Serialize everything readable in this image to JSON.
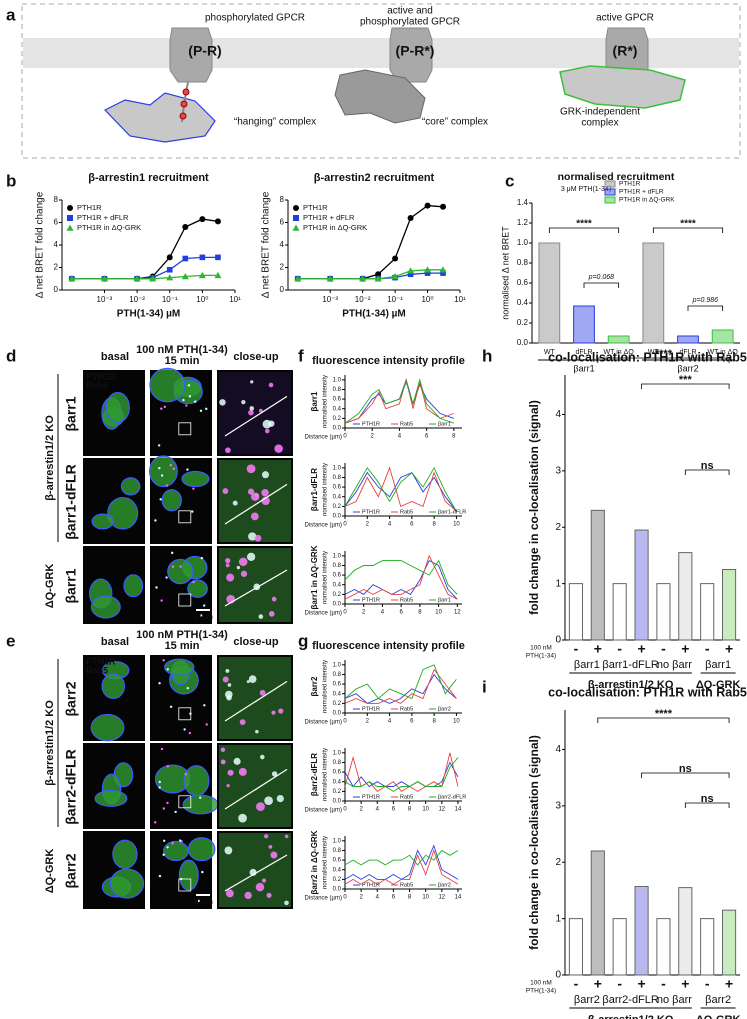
{
  "panel_labels": [
    "a",
    "b",
    "c",
    "d",
    "e",
    "f",
    "g",
    "h",
    "i"
  ],
  "panel_a": {
    "states": [
      {
        "label": [
          "phosphorylated GPCR"
        ],
        "code": "(P-R)",
        "complex": [
          "“hanging” complex"
        ]
      },
      {
        "label": [
          "active and",
          "phosphorylated GPCR"
        ],
        "code": "(P-R*)",
        "complex": [
          "“core” complex"
        ]
      },
      {
        "label": [
          "active GPCR"
        ],
        "code": "(R*)",
        "complex": [
          "GRK-independent",
          "complex"
        ]
      }
    ]
  },
  "micrographs": [
    {
      "columns": [
        [
          "basal"
        ],
        [
          "100 nM PTH(1-34)",
          "15 min"
        ],
        [
          "close-up"
        ]
      ],
      "channels": [
        "PTH1R",
        "Rab5"
      ],
      "rows": [
        "βarr1",
        "βarr1-dFLR",
        "βarr1"
      ],
      "groups": [
        "β-arrestin1/2 KO",
        "ΔQ-GRK"
      ],
      "scale_bar": "10 µm"
    },
    {
      "columns": [
        [
          "basal"
        ],
        [
          "100 nM PTH(1-34)",
          "15 min"
        ],
        [
          "close-up"
        ]
      ],
      "channels": [
        "PTH1R",
        "Rab5"
      ],
      "rows": [
        "βarr2",
        "βarr2-dFLR",
        "βarr2"
      ],
      "groups": [
        "β-arrestin1/2 KO",
        "ΔQ-GRK"
      ],
      "scale_bar": "10 µm"
    }
  ],
  "chart_data": [
    {
      "type": "line",
      "title": "β-arrestin1 recruitment",
      "x_label": "PTH(1-34) µM",
      "y_label": "Δ net BRET fold change",
      "log_x": true,
      "legend": "upper left",
      "x": [
        0.0001,
        0.001,
        0.01,
        0.03,
        0.1,
        0.3,
        1,
        3
      ],
      "xlim": [
        5e-05,
        10
      ],
      "xticks": [
        {
          "value": 0.001,
          "label": "10⁻³"
        },
        {
          "value": 0.01,
          "label": "10⁻²"
        },
        {
          "value": 0.1,
          "label": "10⁻¹"
        },
        {
          "value": 1,
          "label": "10⁰"
        },
        {
          "value": 10,
          "label": "10¹"
        }
      ],
      "ylim": [
        0,
        8
      ],
      "yticks": [
        0,
        2,
        4,
        6,
        8
      ],
      "series": [
        {
          "name": "PTH1R",
          "color": "#000000",
          "marker": "circle",
          "values": [
            1,
            1,
            1,
            1.2,
            2.9,
            5.6,
            6.3,
            6.1
          ]
        },
        {
          "name": "PTH1R + dFLR",
          "color": "#1f3fe0",
          "marker": "square",
          "values": [
            1,
            1,
            1,
            1.1,
            1.8,
            2.8,
            2.9,
            2.9
          ]
        },
        {
          "name": "PTH1R in ΔQ-GRK",
          "color": "#2db82d",
          "marker": "triangle",
          "values": [
            1,
            1,
            1,
            1,
            1.1,
            1.2,
            1.3,
            1.3
          ]
        }
      ]
    },
    {
      "type": "line",
      "title": "β-arrestin2 recruitment",
      "x_label": "PTH(1-34) µM",
      "y_label": "Δ net BRET fold change",
      "log_x": true,
      "legend": "upper left",
      "x": [
        0.0001,
        0.001,
        0.01,
        0.03,
        0.1,
        0.3,
        1,
        3
      ],
      "xlim": [
        5e-05,
        10
      ],
      "xticks": [
        {
          "value": 0.001,
          "label": "10⁻³"
        },
        {
          "value": 0.01,
          "label": "10⁻²"
        },
        {
          "value": 0.1,
          "label": "10⁻¹"
        },
        {
          "value": 1,
          "label": "10⁰"
        },
        {
          "value": 10,
          "label": "10¹"
        }
      ],
      "ylim": [
        0,
        8
      ],
      "yticks": [
        0,
        2,
        4,
        6,
        8
      ],
      "series": [
        {
          "name": "PTH1R",
          "color": "#000000",
          "marker": "circle",
          "values": [
            1,
            1,
            1,
            1.4,
            2.8,
            6.4,
            7.5,
            7.4
          ]
        },
        {
          "name": "PTH1R + dFLR",
          "color": "#1f3fe0",
          "marker": "square",
          "values": [
            1,
            1,
            1,
            1,
            1.1,
            1.4,
            1.5,
            1.5
          ]
        },
        {
          "name": "PTH1R in ΔQ-GRK",
          "color": "#2db82d",
          "marker": "triangle",
          "values": [
            1,
            1,
            1,
            1,
            1.2,
            1.7,
            1.8,
            1.8
          ]
        }
      ]
    },
    {
      "type": "bar",
      "title": "normalised recruitment",
      "subtitle": "3 μM PTH(1-34)",
      "y_label": "normalised Δ net BRET",
      "legend": "upper right",
      "categories": [
        "WT",
        "dFLR",
        "WT in ΔQ",
        "WT",
        "dFLR",
        "WT in ΔQ"
      ],
      "groups": [
        "βarr1",
        "βarr2"
      ],
      "ylim": [
        0,
        1.4
      ],
      "yticks": [
        {
          "value": 0,
          "label": "0.0"
        },
        0.2,
        0.4,
        0.6,
        0.8,
        {
          "value": 1,
          "label": "1.0"
        },
        1.2,
        1.4
      ],
      "series": [
        {
          "name": "PTH1R",
          "color": "#8a8a8a",
          "values": [
            1.0,
            null,
            null,
            1.0,
            null,
            null
          ]
        },
        {
          "name": "PTH1R + dFLR",
          "color": "#2a3fe0",
          "values": [
            null,
            0.37,
            null,
            null,
            0.07,
            null
          ]
        },
        {
          "name": "PTH1R in ΔQ-GRK",
          "color": "#3cc03c",
          "values": [
            null,
            null,
            0.07,
            null,
            null,
            0.13
          ]
        }
      ],
      "annotations": [
        "****",
        "p=0.068",
        "****",
        "p=0.986"
      ]
    },
    {
      "type": "line",
      "title": "fluorescence intensity profile",
      "row_label": "βarr1",
      "y_label": "normalised intensity",
      "x_label": "Distance (µm)",
      "legend": "bottom",
      "x": [
        0,
        1,
        2,
        2.5,
        3,
        4,
        4.5,
        5,
        5.5,
        6,
        7,
        8
      ],
      "xlim": [
        0,
        8.6
      ],
      "xticks": [
        0,
        2,
        4,
        6,
        8
      ],
      "ylim": [
        0,
        1.1
      ],
      "yticks": [
        {
          "value": 0,
          "label": "0.0"
        },
        0.2,
        0.4,
        0.6,
        0.8,
        {
          "value": 1,
          "label": "1.0"
        }
      ],
      "series": [
        {
          "name": "PTH1R",
          "color": "#2a3fe0",
          "values": [
            0.1,
            0.2,
            0.6,
            0.7,
            0.5,
            0.6,
            1.0,
            0.5,
            0.9,
            0.6,
            0.3,
            0.2
          ]
        },
        {
          "name": "Rab5",
          "color": "#e8413c",
          "values": [
            0.1,
            0.2,
            0.5,
            0.75,
            0.4,
            0.5,
            1.0,
            0.4,
            0.95,
            0.4,
            0.2,
            0.3
          ]
        },
        {
          "name": "βarr1",
          "color": "#1fae1f",
          "values": [
            0.1,
            0.3,
            0.7,
            0.8,
            0.5,
            0.6,
            0.95,
            0.5,
            1.0,
            0.5,
            0.2,
            0.1
          ]
        }
      ]
    },
    {
      "type": "line",
      "row_label": "βarr1-dFLR",
      "y_label": "normalised intensity",
      "x_label": "Distance (µm)",
      "legend": "bottom",
      "x": [
        0,
        1,
        2,
        3,
        4,
        5,
        6,
        7,
        8,
        9,
        10
      ],
      "xlim": [
        0,
        10.5
      ],
      "xticks": [
        0,
        2,
        4,
        6,
        8,
        10
      ],
      "ylim": [
        0,
        1.1
      ],
      "yticks": [
        {
          "value": 0,
          "label": "0.0"
        },
        0.2,
        0.4,
        0.6,
        0.8,
        {
          "value": 1,
          "label": "1.0"
        }
      ],
      "series": [
        {
          "name": "PTH1R",
          "color": "#2a3fe0",
          "values": [
            0.2,
            0.5,
            0.9,
            0.6,
            0.4,
            0.8,
            0.9,
            0.5,
            0.8,
            0.4,
            0.1
          ]
        },
        {
          "name": "Rab5",
          "color": "#e8413c",
          "values": [
            0.2,
            0.3,
            0.8,
            0.4,
            1.0,
            0.2,
            0.3,
            0.2,
            0.9,
            0.3,
            0.1
          ]
        },
        {
          "name": "βarr1-dFLR",
          "color": "#1fae1f",
          "values": [
            0.2,
            0.6,
            1.0,
            0.7,
            0.3,
            0.7,
            0.9,
            0.6,
            1.0,
            0.5,
            0.1
          ]
        }
      ]
    },
    {
      "type": "line",
      "row_label": "βarr1 in ΔQ-GRK",
      "y_label": "normalised intensity",
      "x_label": "Distance (µm)",
      "legend": "bottom",
      "x": [
        0,
        1,
        2,
        3,
        4,
        5,
        6,
        7,
        8,
        9,
        10,
        11,
        12
      ],
      "xlim": [
        0,
        12.5
      ],
      "xticks": [
        0,
        2,
        4,
        6,
        8,
        10,
        12
      ],
      "ylim": [
        0,
        1.1
      ],
      "yticks": [
        {
          "value": 0,
          "label": "0.0"
        },
        0.2,
        0.4,
        0.6,
        0.8,
        {
          "value": 1,
          "label": "1.0"
        }
      ],
      "series": [
        {
          "name": "PTH1R",
          "color": "#2a3fe0",
          "values": [
            0.2,
            0.3,
            0.2,
            0.4,
            0.3,
            0.2,
            0.3,
            0.2,
            0.5,
            0.9,
            0.8,
            0.3,
            0.1
          ]
        },
        {
          "name": "Rab5",
          "color": "#e8413c",
          "values": [
            0.1,
            0.2,
            0.3,
            0.2,
            0.3,
            0.2,
            0.2,
            0.3,
            0.4,
            1.0,
            0.6,
            0.2,
            0.1
          ]
        },
        {
          "name": "βarr1",
          "color": "#1fae1f",
          "values": [
            0.5,
            0.7,
            0.8,
            0.8,
            0.9,
            0.9,
            0.9,
            0.8,
            0.7,
            0.6,
            0.9,
            0.4,
            0.2
          ]
        }
      ]
    },
    {
      "type": "bar",
      "title": "co-localisation: PTH1R with Rab5",
      "y_label": "fold change in co-localisation (signal)",
      "categories": [
        "-",
        "+",
        "-",
        "+",
        "-",
        "+",
        "-",
        "+"
      ],
      "groups": [
        "βarr1",
        "βarr1-dFLR",
        "no βarr",
        "βarr1"
      ],
      "group_brackets": [
        "β-arrestin1/2 KO",
        "ΔQ-GRK"
      ],
      "treatment_label": [
        "100 nM",
        "PTH(1-34)"
      ],
      "values": [
        1,
        2.3,
        1,
        1.95,
        1,
        1.55,
        1,
        1.25
      ],
      "colors": [
        "#ffffff",
        "#bdbdbd",
        "#ffffff",
        "#b9b9f0",
        "#ffffff",
        "#ececec",
        "#ffffff",
        "#c8ecc0"
      ],
      "ylim": [
        0,
        4.7
      ],
      "yticks": [
        0,
        1,
        2,
        3,
        4
      ],
      "annotations": [
        "****",
        "***",
        "ns"
      ]
    },
    {
      "type": "line",
      "title": "fluorescence intensity profile",
      "row_label": "βarr2",
      "y_label": "normalised intensity",
      "x_label": "Distance (µm)",
      "legend": "bottom",
      "x": [
        0,
        1,
        2,
        3,
        4,
        5,
        6,
        7,
        8,
        9,
        10
      ],
      "xlim": [
        0,
        10.5
      ],
      "xticks": [
        0,
        2,
        4,
        6,
        8,
        10
      ],
      "ylim": [
        0,
        1.1
      ],
      "yticks": [
        {
          "value": 0,
          "label": "0.0"
        },
        0.2,
        0.4,
        0.6,
        0.8,
        {
          "value": 1,
          "label": "1.0"
        }
      ],
      "series": [
        {
          "name": "PTH1R",
          "color": "#2a3fe0",
          "values": [
            0.3,
            0.4,
            0.2,
            0.3,
            0.2,
            0.3,
            0.5,
            0.4,
            0.8,
            0.5,
            0.3
          ]
        },
        {
          "name": "Rab5",
          "color": "#e8413c",
          "values": [
            0.2,
            0.3,
            0.2,
            0.2,
            0.3,
            0.2,
            0.4,
            0.3,
            0.9,
            0.6,
            0.3
          ]
        },
        {
          "name": "βarr2",
          "color": "#1fae1f",
          "values": [
            0.3,
            0.5,
            0.6,
            0.3,
            0.5,
            0.4,
            0.3,
            0.9,
            1.0,
            0.4,
            0.7
          ]
        }
      ]
    },
    {
      "type": "line",
      "row_label": "βarr2-dFLR",
      "y_label": "normalised intensity",
      "x_label": "Distance (µm)",
      "legend": "bottom",
      "x": [
        0,
        1,
        2,
        3,
        4,
        5,
        6,
        7,
        8,
        9,
        10,
        11,
        12,
        13,
        14
      ],
      "xlim": [
        0,
        14.5
      ],
      "xticks": [
        0,
        2,
        4,
        6,
        8,
        10,
        12,
        14
      ],
      "ylim": [
        0,
        1.1
      ],
      "yticks": [
        {
          "value": 0,
          "label": "0.0"
        },
        0.2,
        0.4,
        0.6,
        0.8,
        {
          "value": 1,
          "label": "1.0"
        }
      ],
      "series": [
        {
          "name": "PTH1R",
          "color": "#2a3fe0",
          "values": [
            0.6,
            0.3,
            0.5,
            0.3,
            0.4,
            0.3,
            0.3,
            0.4,
            0.3,
            0.4,
            0.3,
            0.3,
            0.4,
            0.8,
            0.5
          ]
        },
        {
          "name": "Rab5",
          "color": "#e8413c",
          "values": [
            0.3,
            0.9,
            0.3,
            0.4,
            0.2,
            0.3,
            0.4,
            0.2,
            0.3,
            0.2,
            0.3,
            0.4,
            0.3,
            1.0,
            0.3
          ]
        },
        {
          "name": "βarr2-dFLR",
          "color": "#1fae1f",
          "values": [
            0.4,
            0.3,
            0.3,
            0.4,
            0.3,
            0.3,
            0.2,
            0.3,
            0.3,
            0.4,
            0.3,
            0.3,
            0.3,
            0.7,
            0.9
          ]
        }
      ]
    },
    {
      "type": "line",
      "row_label": "βarr2 in ΔQ-GRK",
      "y_label": "normalised intensity",
      "x_label": "Distance (µm)",
      "legend": "bottom",
      "x": [
        0,
        1,
        2,
        3,
        4,
        5,
        6,
        7,
        8,
        9,
        10,
        11,
        12,
        13,
        14
      ],
      "xlim": [
        0,
        14.5
      ],
      "xticks": [
        0,
        2,
        4,
        6,
        8,
        10,
        12,
        14
      ],
      "ylim": [
        0,
        1.1
      ],
      "yticks": [
        {
          "value": 0,
          "label": "0.0"
        },
        0.2,
        0.4,
        0.6,
        0.8,
        {
          "value": 1,
          "label": "1.0"
        }
      ],
      "series": [
        {
          "name": "PTH1R",
          "color": "#2a3fe0",
          "values": [
            0.2,
            0.3,
            0.2,
            0.3,
            0.2,
            0.2,
            0.3,
            0.2,
            0.3,
            0.8,
            0.5,
            0.9,
            0.4,
            0.3,
            0.2
          ]
        },
        {
          "name": "Rab5",
          "color": "#e8413c",
          "values": [
            0.1,
            0.2,
            0.1,
            0.2,
            0.1,
            0.2,
            0.1,
            0.2,
            0.2,
            0.7,
            0.3,
            0.8,
            0.3,
            0.2,
            0.1
          ]
        },
        {
          "name": "βarr2",
          "color": "#1fae1f",
          "values": [
            0.5,
            0.6,
            0.5,
            0.6,
            0.6,
            0.5,
            0.6,
            0.6,
            0.7,
            0.5,
            0.7,
            0.6,
            0.8,
            0.7,
            0.8
          ]
        }
      ]
    },
    {
      "type": "bar",
      "title": "co-localisation: PTH1R with Rab5",
      "y_label": "fold change in co-localisation (signal)",
      "categories": [
        "-",
        "+",
        "-",
        "+",
        "-",
        "+",
        "-",
        "+"
      ],
      "groups": [
        "βarr2",
        "βarr2-dFLR",
        "no βarr",
        "βarr2"
      ],
      "group_brackets": [
        "β-arrestin1/2 KO",
        "ΔQ-GRK"
      ],
      "treatment_label": [
        "100 nM",
        "PTH(1-34)"
      ],
      "values": [
        1,
        2.2,
        1,
        1.57,
        1,
        1.55,
        1,
        1.15
      ],
      "colors": [
        "#ffffff",
        "#bdbdbd",
        "#ffffff",
        "#b9b9f0",
        "#ffffff",
        "#ececec",
        "#ffffff",
        "#c8ecc0"
      ],
      "ylim": [
        0,
        4.7
      ],
      "yticks": [
        0,
        1,
        2,
        3,
        4
      ],
      "annotations": [
        "****",
        "ns",
        "ns"
      ]
    }
  ]
}
